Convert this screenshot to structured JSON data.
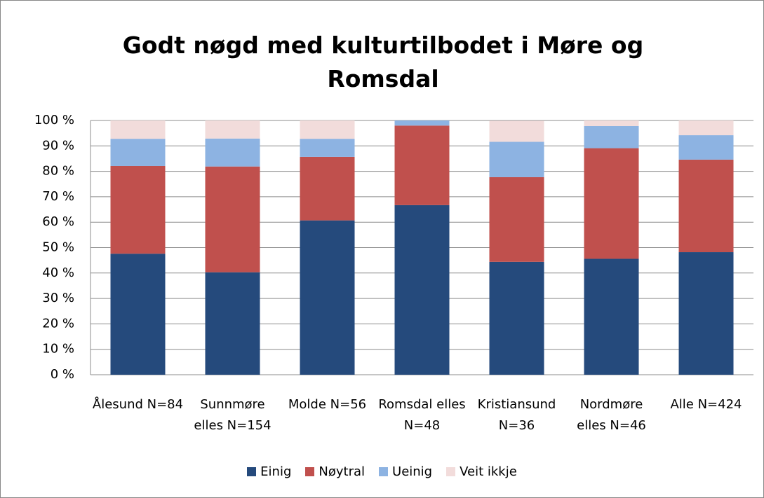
{
  "chart_data": {
    "type": "bar",
    "stacked": true,
    "title": "Godt nøgd med kulturtilbodet i Møre og Romsdal",
    "categories": [
      "Ålesund N=84",
      "Sunnmøre elles N=154",
      "Molde N=56",
      "Romsdal elles N=48",
      "Kristiansund N=36",
      "Nordmøre elles N=46",
      "Alle N=424"
    ],
    "series": [
      {
        "name": "Einig",
        "color": "#254a7c",
        "values": [
          47.6,
          40.3,
          60.7,
          66.7,
          44.4,
          45.6,
          48.2
        ]
      },
      {
        "name": "Nøytral",
        "color": "#c0504d",
        "values": [
          34.5,
          41.6,
          25.0,
          31.3,
          33.3,
          43.5,
          36.4
        ]
      },
      {
        "name": "Ueinig",
        "color": "#8db3e2",
        "values": [
          10.7,
          11.0,
          7.1,
          2.0,
          13.9,
          8.7,
          9.6
        ]
      },
      {
        "name": "Veit ikkje",
        "color": "#f2dcdb",
        "values": [
          7.2,
          7.1,
          7.2,
          0,
          8.3,
          2.2,
          5.8
        ]
      }
    ],
    "ylim": [
      0,
      100
    ],
    "yticks": [
      {
        "value": 0,
        "label": "0 %"
      },
      {
        "value": 10,
        "label": "10 %"
      },
      {
        "value": 20,
        "label": "20 %"
      },
      {
        "value": 30,
        "label": "30 %"
      },
      {
        "value": 40,
        "label": "40 %"
      },
      {
        "value": 50,
        "label": "50 %"
      },
      {
        "value": 60,
        "label": "60 %"
      },
      {
        "value": 70,
        "label": "70 %"
      },
      {
        "value": 80,
        "label": "80 %"
      },
      {
        "value": 90,
        "label": "90 %"
      },
      {
        "value": 100,
        "label": "100 %"
      }
    ],
    "grid": true
  }
}
